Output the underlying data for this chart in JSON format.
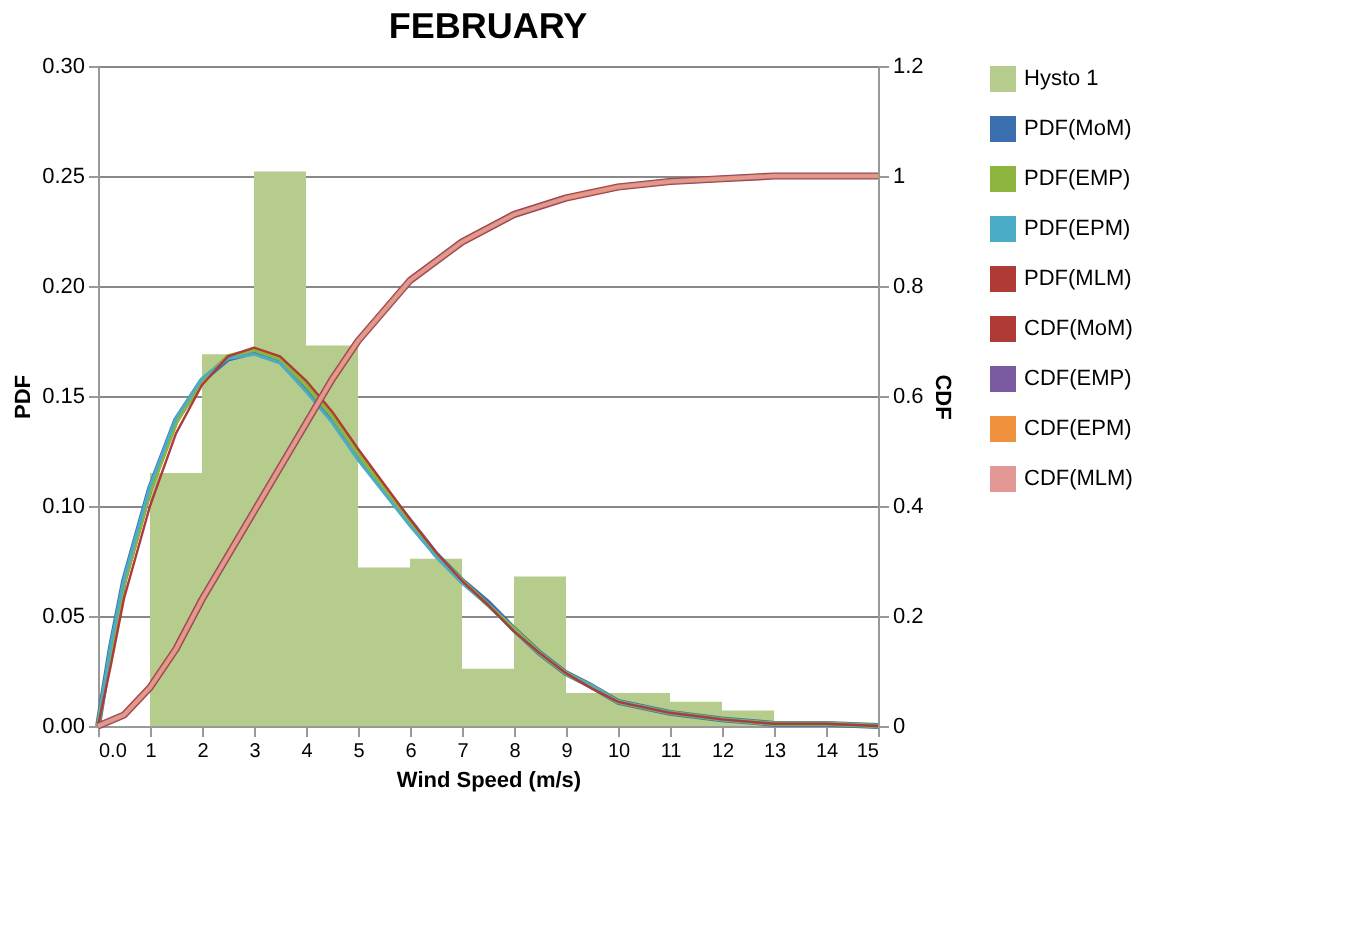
{
  "chart_data": {
    "type": "histogram",
    "title": "FEBRUARY",
    "xlabel": "Wind Speed (m/s)",
    "ylabel": "PDF",
    "y2label": "CDF",
    "xlim": [
      0,
      15
    ],
    "xticks": [
      {
        "value": 0,
        "label": "0.0"
      },
      1,
      2,
      3,
      4,
      5,
      6,
      7,
      8,
      9,
      10,
      11,
      12,
      13,
      14,
      15
    ],
    "ylim": [
      0,
      0.3
    ],
    "yticks": [
      {
        "value": 0,
        "label": "0.00"
      },
      {
        "value": 0.05,
        "label": "0.05"
      },
      {
        "value": 0.1,
        "label": "0.10"
      },
      {
        "value": 0.15,
        "label": "0.15"
      },
      {
        "value": 0.2,
        "label": "0.20"
      },
      {
        "value": 0.25,
        "label": "0.25"
      },
      {
        "value": 0.3,
        "label": "0.30"
      }
    ],
    "y2lim": [
      0,
      1.2
    ],
    "y2ticks": [
      {
        "value": 0,
        "label": "0"
      },
      0.2,
      0.4,
      0.6,
      0.8,
      {
        "value": 1,
        "label": "1"
      },
      1.2
    ],
    "grid": "y",
    "legend": "right",
    "series": [
      {
        "name": "Hysto 1",
        "color": "#b6cc8c",
        "bins": [
          1,
          2,
          3,
          4,
          5,
          6,
          7,
          8,
          9,
          10,
          11,
          12,
          13
        ],
        "values": [
          0.115,
          0.169,
          0.252,
          0.173,
          0.072,
          0.076,
          0.026,
          0.068,
          0.015,
          0.015,
          0.011,
          0.007
        ]
      },
      {
        "name": "PDF(MoM)",
        "type": "line",
        "color": "#3a6fb0",
        "x": [
          0,
          0.25,
          0.5,
          1,
          1.5,
          2,
          2.5,
          3,
          3.5,
          4,
          4.5,
          5,
          5.5,
          6,
          6.5,
          7,
          7.5,
          8,
          8.5,
          9,
          9.5,
          10,
          11,
          12,
          13,
          14,
          15
        ],
        "values": [
          0,
          0.036,
          0.066,
          0.108,
          0.139,
          0.157,
          0.167,
          0.17,
          0.166,
          0.154,
          0.14,
          0.123,
          0.108,
          0.093,
          0.078,
          0.066,
          0.056,
          0.044,
          0.033,
          0.024,
          0.018,
          0.011,
          0.006,
          0.003,
          0.001,
          0.001,
          0
        ]
      },
      {
        "name": "PDF(EMP)",
        "type": "line",
        "color": "#8db43e",
        "x": [
          0,
          0.25,
          0.5,
          1,
          1.5,
          2,
          2.5,
          3,
          3.5,
          4,
          4.5,
          5,
          5.5,
          6,
          6.5,
          7,
          7.5,
          8,
          8.5,
          9,
          9.5,
          10,
          11,
          12,
          13,
          14,
          15
        ],
        "values": [
          0,
          0.035,
          0.065,
          0.107,
          0.138,
          0.157,
          0.168,
          0.171,
          0.167,
          0.155,
          0.141,
          0.124,
          0.108,
          0.093,
          0.078,
          0.066,
          0.055,
          0.044,
          0.033,
          0.024,
          0.018,
          0.011,
          0.006,
          0.003,
          0.001,
          0.001,
          0
        ]
      },
      {
        "name": "PDF(EPM)",
        "type": "line",
        "color": "#4aacc6",
        "x": [
          0,
          0.25,
          0.5,
          1,
          1.5,
          2,
          2.5,
          3,
          3.5,
          4,
          4.5,
          5,
          5.5,
          6,
          6.5,
          7,
          7.5,
          8,
          8.5,
          9,
          9.5,
          10,
          11,
          12,
          13,
          14,
          15
        ],
        "values": [
          0,
          0.037,
          0.067,
          0.109,
          0.14,
          0.158,
          0.167,
          0.169,
          0.165,
          0.152,
          0.138,
          0.121,
          0.106,
          0.091,
          0.077,
          0.065,
          0.055,
          0.043,
          0.033,
          0.024,
          0.018,
          0.011,
          0.006,
          0.003,
          0.001,
          0.001,
          0
        ]
      },
      {
        "name": "PDF(MLM)",
        "type": "line",
        "color": "#b03a35",
        "x": [
          0,
          0.25,
          0.5,
          1,
          1.5,
          2,
          2.5,
          3,
          3.5,
          4,
          4.5,
          5,
          5.5,
          6,
          6.5,
          7,
          7.5,
          8,
          8.5,
          9,
          9.5,
          10,
          11,
          12,
          13,
          14,
          15
        ],
        "values": [
          0,
          0.028,
          0.058,
          0.1,
          0.133,
          0.155,
          0.168,
          0.172,
          0.168,
          0.157,
          0.143,
          0.126,
          0.11,
          0.094,
          0.079,
          0.066,
          0.055,
          0.043,
          0.033,
          0.024,
          0.017,
          0.011,
          0.006,
          0.003,
          0.001,
          0.001,
          0
        ]
      },
      {
        "name": "CDF(MoM)",
        "type": "line",
        "axis": "y2",
        "color": "#b03a35",
        "x": [
          0,
          0.5,
          1,
          1.5,
          2,
          2.5,
          3,
          3.5,
          4,
          4.5,
          5,
          6,
          7,
          8,
          9,
          10,
          11,
          12,
          13,
          14,
          15
        ],
        "values": [
          0,
          0.02,
          0.07,
          0.14,
          0.23,
          0.31,
          0.39,
          0.47,
          0.55,
          0.63,
          0.7,
          0.81,
          0.88,
          0.93,
          0.96,
          0.98,
          0.99,
          0.995,
          1,
          1,
          1
        ]
      },
      {
        "name": "CDF(EMP)",
        "type": "line",
        "axis": "y2",
        "color": "#7a5aa0",
        "x": [
          0,
          0.5,
          1,
          1.5,
          2,
          2.5,
          3,
          3.5,
          4,
          4.5,
          5,
          6,
          7,
          8,
          9,
          10,
          11,
          12,
          13,
          14,
          15
        ],
        "values": [
          0,
          0.02,
          0.07,
          0.14,
          0.23,
          0.31,
          0.39,
          0.47,
          0.55,
          0.63,
          0.7,
          0.81,
          0.88,
          0.93,
          0.96,
          0.98,
          0.99,
          0.995,
          1,
          1,
          1
        ]
      },
      {
        "name": "CDF(EPM)",
        "type": "line",
        "axis": "y2",
        "color": "#f0913e",
        "x": [
          0,
          0.5,
          1,
          1.5,
          2,
          2.5,
          3,
          3.5,
          4,
          4.5,
          5,
          6,
          7,
          8,
          9,
          10,
          11,
          12,
          13,
          14,
          15
        ],
        "values": [
          0,
          0.02,
          0.07,
          0.14,
          0.23,
          0.31,
          0.39,
          0.47,
          0.55,
          0.63,
          0.7,
          0.81,
          0.88,
          0.93,
          0.96,
          0.98,
          0.99,
          0.995,
          1,
          1,
          1
        ]
      },
      {
        "name": "CDF(MLM)",
        "type": "line",
        "axis": "y2",
        "color": "#e39896",
        "x": [
          0,
          0.5,
          1,
          1.5,
          2,
          2.5,
          3,
          3.5,
          4,
          4.5,
          5,
          6,
          7,
          8,
          9,
          10,
          11,
          12,
          13,
          14,
          15
        ],
        "values": [
          0,
          0.02,
          0.07,
          0.14,
          0.23,
          0.31,
          0.39,
          0.47,
          0.55,
          0.63,
          0.7,
          0.81,
          0.88,
          0.93,
          0.96,
          0.98,
          0.99,
          0.995,
          1,
          1,
          1
        ]
      }
    ]
  }
}
